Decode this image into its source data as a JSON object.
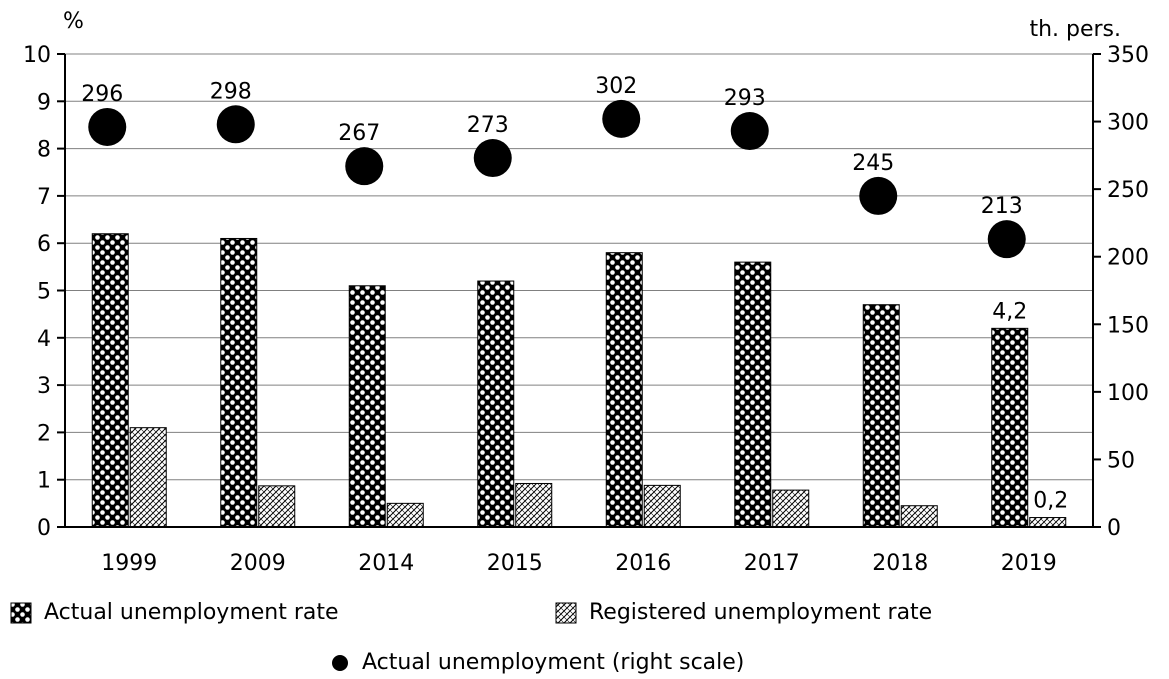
{
  "chart_data": {
    "type": "bar",
    "categories": [
      "1999",
      "2009",
      "2014",
      "2015",
      "2016",
      "2017",
      "2018",
      "2019"
    ],
    "series": [
      {
        "name": "Actual unemployment rate",
        "type": "bar",
        "axis": "left",
        "values": [
          6.2,
          6.1,
          5.1,
          5.2,
          5.8,
          5.6,
          4.7,
          4.2
        ]
      },
      {
        "name": "Registered unemployment rate",
        "type": "bar",
        "axis": "left",
        "values": [
          2.1,
          0.87,
          0.5,
          0.92,
          0.88,
          0.78,
          0.45,
          0.2
        ]
      },
      {
        "name": "Actual unemployment (right scale)",
        "type": "scatter",
        "axis": "right",
        "values": [
          296,
          298,
          267,
          273,
          302,
          293,
          245,
          213
        ]
      }
    ],
    "left_axis": {
      "unit": "%",
      "ylim": [
        0,
        10
      ],
      "ticks": [
        "0",
        "1",
        "2",
        "3",
        "4",
        "5",
        "6",
        "7",
        "8",
        "9",
        "10"
      ]
    },
    "right_axis": {
      "unit": "th. pers.",
      "ylim": [
        0,
        350
      ],
      "ticks": [
        "0",
        "50",
        "100",
        "150",
        "200",
        "250",
        "300",
        "350"
      ]
    },
    "data_labels": {
      "scatter": [
        "296",
        "298",
        "267",
        "273",
        "302",
        "293",
        "245",
        "213"
      ],
      "actual_last": "4,2",
      "registered_last": "0,2"
    },
    "grid": true,
    "legend_position": "bottom"
  },
  "legend": {
    "actual_rate": "Actual unemployment rate",
    "registered_rate": "Registered unemployment rate",
    "actual_people": "Actual unemployment (right scale)"
  },
  "colors": {
    "bar_dark": "#000000",
    "bar_light": "#ffffff",
    "marker": "#000000",
    "grid": "#808080"
  }
}
